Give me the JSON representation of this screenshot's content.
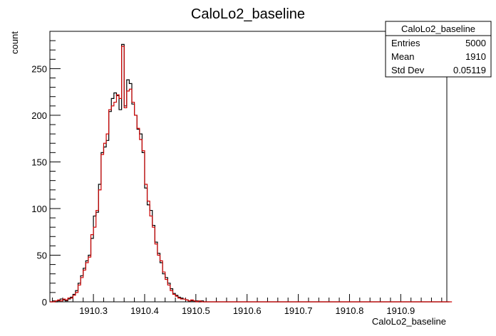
{
  "chart_data": {
    "type": "histogram",
    "title": "CaloLo2_baseline",
    "xlabel": "CaloLo2_baseline",
    "ylabel": "count",
    "xlim": [
      1910.215,
      1910.99
    ],
    "ylim": [
      0,
      290
    ],
    "x_ticks": [
      1910.3,
      1910.4,
      1910.5,
      1910.6,
      1910.7,
      1910.8,
      1910.9
    ],
    "x_tick_labels": [
      "1910.3",
      "1910.4",
      "1910.5",
      "1910.6",
      "1910.7",
      "1910.8",
      "1910.9"
    ],
    "y_ticks": [
      0,
      50,
      100,
      150,
      200,
      250
    ],
    "y_tick_labels": [
      "0",
      "50",
      "100",
      "150",
      "200",
      "250"
    ],
    "grid": false,
    "bin_edges_start": 1910.215,
    "bin_width": 0.005,
    "series": [
      {
        "color": "#000000",
        "values": [
          0,
          1,
          0,
          1,
          3,
          2,
          1,
          3,
          5,
          8,
          12,
          20,
          28,
          36,
          44,
          50,
          68,
          92,
          96,
          126,
          160,
          166,
          173,
          204,
          218,
          224,
          221,
          206,
          276,
          210,
          238,
          234,
          212,
          200,
          185,
          180,
          160,
          122,
          104,
          98,
          82,
          64,
          52,
          42,
          30,
          26,
          20,
          14,
          9,
          7,
          5,
          4,
          3,
          2,
          1,
          1,
          1,
          1,
          0,
          1,
          0,
          0,
          0,
          0,
          0,
          0,
          0,
          0,
          0,
          0,
          0,
          0,
          0,
          0,
          0,
          0,
          0,
          0,
          0,
          0,
          0,
          0,
          0,
          0,
          0,
          0,
          0,
          0,
          0,
          0,
          0,
          0,
          0,
          0,
          0,
          0,
          0,
          0,
          0,
          0,
          0,
          0,
          0,
          0,
          0,
          0,
          0,
          0,
          0,
          0,
          0,
          0,
          0,
          0,
          0,
          0,
          0,
          0,
          0,
          0,
          0,
          0,
          0,
          0,
          0,
          0,
          0,
          0,
          0,
          0,
          0,
          0,
          0,
          0,
          0,
          0,
          0,
          0,
          0,
          0,
          0,
          0,
          0,
          0,
          0,
          0,
          0,
          0,
          0,
          0,
          0,
          0,
          0,
          0,
          0,
          0,
          0
        ]
      },
      {
        "color": "#cc0000",
        "values": [
          0,
          0,
          1,
          2,
          1,
          3,
          2,
          4,
          4,
          7,
          10,
          18,
          26,
          34,
          42,
          48,
          72,
          80,
          98,
          120,
          158,
          170,
          180,
          206,
          210,
          214,
          222,
          218,
          274,
          208,
          226,
          228,
          214,
          200,
          186,
          174,
          162,
          126,
          108,
          92,
          80,
          62,
          50,
          44,
          32,
          24,
          18,
          12,
          8,
          6,
          4,
          3,
          3,
          2,
          1,
          2,
          1,
          0,
          1,
          0,
          0,
          0,
          0,
          0,
          0,
          0,
          0,
          0,
          0,
          0,
          0,
          0,
          0,
          0,
          0,
          0,
          0,
          0,
          0,
          0,
          0,
          0,
          0,
          0,
          0,
          0,
          0,
          0,
          0,
          0,
          0,
          0,
          0,
          0,
          0,
          0,
          0,
          0,
          0,
          0,
          0,
          0,
          0,
          0,
          0,
          0,
          0,
          0,
          0,
          0,
          0,
          0,
          0,
          0,
          0,
          0,
          0,
          0,
          0,
          0,
          0,
          0,
          0,
          0,
          0,
          0,
          0,
          0,
          0,
          0,
          0,
          0,
          0,
          0,
          0,
          0,
          0,
          0,
          0,
          0,
          0,
          0,
          0,
          0,
          0,
          0,
          0,
          0,
          0,
          0,
          0,
          0,
          0,
          0,
          0,
          0,
          0,
          0
        ]
      }
    ],
    "stats_box": {
      "title": "CaloLo2_baseline",
      "entries_label": "Entries",
      "entries_value": "5000",
      "mean_label": "Mean",
      "mean_value": "1910",
      "stddev_label": "Std Dev",
      "stddev_value": "0.05119"
    }
  }
}
